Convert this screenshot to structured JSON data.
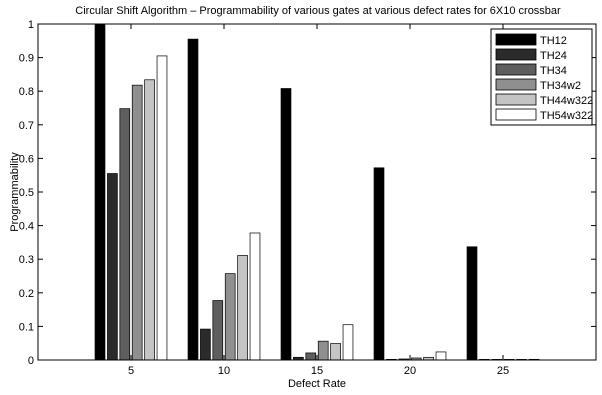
{
  "chart_data": {
    "type": "bar",
    "title": "Circular Shift Algorithm – Programmability of various gates at various defect rates for 6X10 crossbar",
    "xlabel": "Defect Rate",
    "ylabel": "Programmability",
    "categories": [
      "5",
      "10",
      "15",
      "20",
      "25"
    ],
    "category_x": [
      5,
      10,
      15,
      20,
      25
    ],
    "xlim": [
      0,
      30
    ],
    "ylim": [
      0,
      1
    ],
    "yticks": [
      "0",
      "0.1",
      "0.2",
      "0.3",
      "0.4",
      "0.5",
      "0.6",
      "0.7",
      "0.8",
      "0.9",
      "1"
    ],
    "ytick_values": [
      0,
      0.1,
      0.2,
      0.3,
      0.4,
      0.5,
      0.6,
      0.7,
      0.8,
      0.9,
      1
    ],
    "grid": false,
    "legend_position": "top-right",
    "series": [
      {
        "name": "TH12",
        "color": "#000000",
        "values": [
          1.0,
          0.955,
          0.808,
          0.572,
          0.337
        ]
      },
      {
        "name": "TH24",
        "color": "#2b2b2b",
        "values": [
          0.555,
          0.092,
          0.008,
          0.002,
          0.001
        ]
      },
      {
        "name": "TH34",
        "color": "#5e5e5e",
        "values": [
          0.748,
          0.177,
          0.021,
          0.003,
          0.001
        ]
      },
      {
        "name": "TH34w2",
        "color": "#8f8f8f",
        "values": [
          0.818,
          0.257,
          0.056,
          0.006,
          0.001
        ]
      },
      {
        "name": "TH44w322",
        "color": "#c4c4c4",
        "values": [
          0.834,
          0.311,
          0.049,
          0.008,
          0.001
        ]
      },
      {
        "name": "TH54w322",
        "color": "#ffffff",
        "values": [
          0.905,
          0.378,
          0.105,
          0.024,
          0.002
        ]
      }
    ]
  }
}
